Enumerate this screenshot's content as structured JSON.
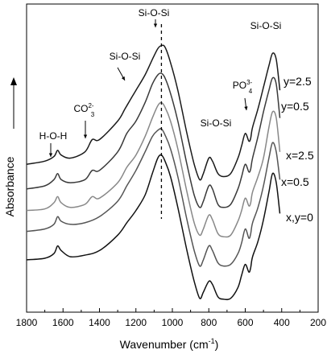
{
  "chart_data": {
    "type": "line",
    "title": "",
    "xlabel": "Wavenumber (cm",
    "xlabel_sup": "-1",
    "xlabel_close": ")",
    "ylabel": "Absorbance",
    "xlim": [
      1800,
      200
    ],
    "x_reversed": true,
    "x_ticks": [
      1800,
      1600,
      1400,
      1200,
      1000,
      800,
      600,
      400,
      200
    ],
    "y_ticks_labeled": false,
    "grid": false,
    "legend": "none",
    "vline_x": 1060,
    "series": [
      {
        "name": "x,y=0",
        "color": "#111111",
        "points": [
          [
            1800,
            0.17
          ],
          [
            1700,
            0.175
          ],
          [
            1650,
            0.19
          ],
          [
            1630,
            0.215
          ],
          [
            1610,
            0.2
          ],
          [
            1560,
            0.18
          ],
          [
            1480,
            0.185
          ],
          [
            1400,
            0.2
          ],
          [
            1300,
            0.25
          ],
          [
            1250,
            0.29
          ],
          [
            1200,
            0.33
          ],
          [
            1150,
            0.38
          ],
          [
            1110,
            0.45
          ],
          [
            1080,
            0.5
          ],
          [
            1060,
            0.51
          ],
          [
            1040,
            0.49
          ],
          [
            1010,
            0.44
          ],
          [
            970,
            0.34
          ],
          [
            920,
            0.2
          ],
          [
            880,
            0.1
          ],
          [
            850,
            0.045
          ],
          [
            830,
            0.065
          ],
          [
            800,
            0.1
          ],
          [
            780,
            0.09
          ],
          [
            750,
            0.05
          ],
          [
            720,
            0.042
          ],
          [
            680,
            0.045
          ],
          [
            640,
            0.08
          ],
          [
            620,
            0.12
          ],
          [
            600,
            0.155
          ],
          [
            580,
            0.13
          ],
          [
            570,
            0.145
          ],
          [
            560,
            0.18
          ],
          [
            530,
            0.23
          ],
          [
            500,
            0.3
          ],
          [
            470,
            0.39
          ],
          [
            450,
            0.45
          ],
          [
            430,
            0.42
          ],
          [
            410,
            0.32
          ]
        ]
      },
      {
        "name": "x=0.5",
        "color": "#555555",
        "points": [
          [
            1800,
            0.262
          ],
          [
            1700,
            0.27
          ],
          [
            1650,
            0.285
          ],
          [
            1630,
            0.31
          ],
          [
            1610,
            0.295
          ],
          [
            1560,
            0.285
          ],
          [
            1480,
            0.29
          ],
          [
            1400,
            0.31
          ],
          [
            1300,
            0.36
          ],
          [
            1250,
            0.41
          ],
          [
            1200,
            0.46
          ],
          [
            1150,
            0.52
          ],
          [
            1110,
            0.57
          ],
          [
            1080,
            0.59
          ],
          [
            1060,
            0.595
          ],
          [
            1040,
            0.575
          ],
          [
            1010,
            0.53
          ],
          [
            970,
            0.44
          ],
          [
            920,
            0.3
          ],
          [
            880,
            0.2
          ],
          [
            850,
            0.15
          ],
          [
            830,
            0.17
          ],
          [
            800,
            0.215
          ],
          [
            780,
            0.2
          ],
          [
            750,
            0.16
          ],
          [
            720,
            0.15
          ],
          [
            680,
            0.155
          ],
          [
            640,
            0.19
          ],
          [
            620,
            0.225
          ],
          [
            600,
            0.27
          ],
          [
            580,
            0.24
          ],
          [
            570,
            0.255
          ],
          [
            560,
            0.29
          ],
          [
            530,
            0.34
          ],
          [
            500,
            0.41
          ],
          [
            470,
            0.5
          ],
          [
            450,
            0.55
          ],
          [
            430,
            0.52
          ],
          [
            410,
            0.43
          ]
        ]
      },
      {
        "name": "x=2.5",
        "color": "#888888",
        "points": [
          [
            1800,
            0.33
          ],
          [
            1700,
            0.335
          ],
          [
            1650,
            0.355
          ],
          [
            1630,
            0.375
          ],
          [
            1610,
            0.355
          ],
          [
            1560,
            0.34
          ],
          [
            1480,
            0.35
          ],
          [
            1440,
            0.375
          ],
          [
            1400,
            0.37
          ],
          [
            1300,
            0.42
          ],
          [
            1250,
            0.47
          ],
          [
            1200,
            0.51
          ],
          [
            1150,
            0.57
          ],
          [
            1110,
            0.63
          ],
          [
            1080,
            0.67
          ],
          [
            1060,
            0.68
          ],
          [
            1040,
            0.665
          ],
          [
            1010,
            0.62
          ],
          [
            970,
            0.53
          ],
          [
            920,
            0.39
          ],
          [
            880,
            0.29
          ],
          [
            850,
            0.25
          ],
          [
            830,
            0.27
          ],
          [
            800,
            0.315
          ],
          [
            780,
            0.3
          ],
          [
            750,
            0.255
          ],
          [
            720,
            0.245
          ],
          [
            680,
            0.25
          ],
          [
            640,
            0.295
          ],
          [
            620,
            0.33
          ],
          [
            600,
            0.37
          ],
          [
            580,
            0.345
          ],
          [
            570,
            0.355
          ],
          [
            560,
            0.39
          ],
          [
            530,
            0.44
          ],
          [
            500,
            0.5
          ],
          [
            470,
            0.6
          ],
          [
            450,
            0.65
          ],
          [
            430,
            0.63
          ],
          [
            410,
            0.52
          ]
        ]
      },
      {
        "name": "y=0.5",
        "color": "#3a3a3a",
        "points": [
          [
            1800,
            0.4
          ],
          [
            1700,
            0.41
          ],
          [
            1650,
            0.43
          ],
          [
            1630,
            0.45
          ],
          [
            1610,
            0.43
          ],
          [
            1560,
            0.42
          ],
          [
            1480,
            0.43
          ],
          [
            1440,
            0.46
          ],
          [
            1400,
            0.46
          ],
          [
            1300,
            0.52
          ],
          [
            1250,
            0.58
          ],
          [
            1200,
            0.62
          ],
          [
            1150,
            0.68
          ],
          [
            1110,
            0.74
          ],
          [
            1080,
            0.77
          ],
          [
            1060,
            0.775
          ],
          [
            1040,
            0.76
          ],
          [
            1010,
            0.71
          ],
          [
            970,
            0.62
          ],
          [
            920,
            0.48
          ],
          [
            880,
            0.38
          ],
          [
            850,
            0.34
          ],
          [
            830,
            0.36
          ],
          [
            800,
            0.41
          ],
          [
            780,
            0.4
          ],
          [
            750,
            0.35
          ],
          [
            720,
            0.34
          ],
          [
            680,
            0.35
          ],
          [
            640,
            0.4
          ],
          [
            620,
            0.44
          ],
          [
            600,
            0.48
          ],
          [
            580,
            0.455
          ],
          [
            570,
            0.465
          ],
          [
            560,
            0.5
          ],
          [
            530,
            0.57
          ],
          [
            500,
            0.65
          ],
          [
            470,
            0.72
          ],
          [
            450,
            0.76
          ],
          [
            430,
            0.74
          ],
          [
            410,
            0.63
          ]
        ]
      },
      {
        "name": "y=2.5",
        "color": "#1a1a1a",
        "points": [
          [
            1800,
            0.48
          ],
          [
            1700,
            0.49
          ],
          [
            1650,
            0.505
          ],
          [
            1630,
            0.525
          ],
          [
            1610,
            0.51
          ],
          [
            1560,
            0.5
          ],
          [
            1480,
            0.52
          ],
          [
            1440,
            0.56
          ],
          [
            1400,
            0.56
          ],
          [
            1300,
            0.62
          ],
          [
            1260,
            0.66
          ],
          [
            1220,
            0.7
          ],
          [
            1200,
            0.72
          ],
          [
            1150,
            0.77
          ],
          [
            1110,
            0.82
          ],
          [
            1080,
            0.855
          ],
          [
            1060,
            0.865
          ],
          [
            1040,
            0.86
          ],
          [
            1010,
            0.81
          ],
          [
            970,
            0.72
          ],
          [
            920,
            0.58
          ],
          [
            880,
            0.48
          ],
          [
            850,
            0.43
          ],
          [
            830,
            0.45
          ],
          [
            800,
            0.5
          ],
          [
            780,
            0.49
          ],
          [
            750,
            0.45
          ],
          [
            720,
            0.44
          ],
          [
            680,
            0.45
          ],
          [
            640,
            0.5
          ],
          [
            620,
            0.54
          ],
          [
            600,
            0.58
          ],
          [
            580,
            0.555
          ],
          [
            570,
            0.565
          ],
          [
            560,
            0.6
          ],
          [
            530,
            0.66
          ],
          [
            500,
            0.73
          ],
          [
            470,
            0.8
          ],
          [
            450,
            0.84
          ],
          [
            430,
            0.82
          ],
          [
            410,
            0.72
          ]
        ]
      }
    ],
    "series_labels": [
      {
        "text": "y=2.5",
        "series": 4
      },
      {
        "text": "y=0.5",
        "series": 3
      },
      {
        "text": "x=2.5",
        "series": 2
      },
      {
        "text": "x=0.5",
        "series": 1
      },
      {
        "text": "x,y=0",
        "series": 0
      }
    ],
    "annotations": [
      {
        "id": "hoh",
        "text": "H-O-H",
        "x": 1640
      },
      {
        "id": "co3",
        "text": "CO",
        "sub": "3",
        "sup": "2-",
        "x": 1460
      },
      {
        "id": "siosi_left",
        "text": "Si-O-Si",
        "x": 1230
      },
      {
        "id": "siosi_top",
        "text": "Si-O-Si",
        "x": 1060
      },
      {
        "id": "siosi_mid",
        "text": "Si-O-Si",
        "x": 800
      },
      {
        "id": "po4",
        "text": "PO",
        "sub": "4",
        "sup": "3-",
        "x": 575
      },
      {
        "id": "siosi_right",
        "text": "Si-O-Si",
        "x": 450
      }
    ]
  }
}
